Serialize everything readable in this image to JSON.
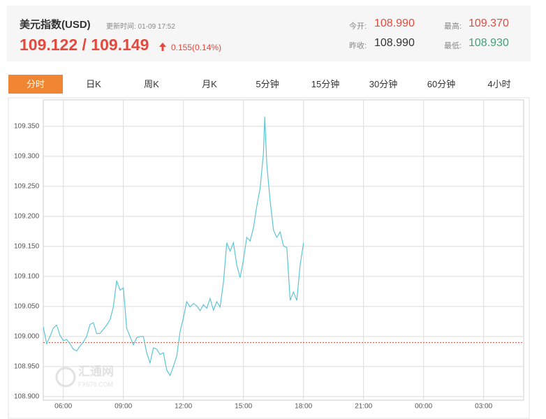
{
  "header": {
    "title": "美元指数(USD)",
    "update_time": "更新时间: 01-09 17:52",
    "price": "109.122 / 109.149",
    "change": "0.155(0.14%)",
    "stats": [
      {
        "label": "今开:",
        "value": "108.990"
      },
      {
        "label": "最高:",
        "value": "109.370"
      },
      {
        "label": "昨收:",
        "value": "108.990"
      },
      {
        "label": "最低:",
        "value": "108.930"
      }
    ]
  },
  "tabs": {
    "items": [
      "分时",
      "日K",
      "周K",
      "月K",
      "5分钟",
      "15分钟",
      "30分钟",
      "60分钟",
      "4小时"
    ],
    "active": 0
  },
  "watermark": {
    "name": "汇通网",
    "site": "FX678.COM"
  },
  "chart_data": {
    "type": "line",
    "grid": true,
    "reference_line": 108.99,
    "xlim": [
      300,
      1740
    ],
    "xticks": [
      {
        "value": 360,
        "label": "06:00"
      },
      {
        "value": 540,
        "label": "09:00"
      },
      {
        "value": 720,
        "label": "12:00"
      },
      {
        "value": 900,
        "label": "15:00"
      },
      {
        "value": 1080,
        "label": "18:00"
      },
      {
        "value": 1260,
        "label": "21:00"
      },
      {
        "value": 1440,
        "label": "00:00"
      },
      {
        "value": 1620,
        "label": "03:00"
      }
    ],
    "ylim": [
      108.894,
      109.394
    ],
    "yticks": [
      {
        "value": 108.9,
        "label": "108.900"
      },
      {
        "value": 108.95,
        "label": "108.950"
      },
      {
        "value": 109.0,
        "label": "109.000"
      },
      {
        "value": 109.05,
        "label": "109.050"
      },
      {
        "value": 109.1,
        "label": "109.100"
      },
      {
        "value": 109.15,
        "label": "109.150"
      },
      {
        "value": 109.2,
        "label": "109.200"
      },
      {
        "value": 109.25,
        "label": "109.250"
      },
      {
        "value": 109.3,
        "label": "109.300"
      },
      {
        "value": 109.35,
        "label": "109.350"
      }
    ],
    "series": [
      {
        "color": "#5cc6d4",
        "x": [
          300,
          310,
          320,
          330,
          340,
          350,
          360,
          370,
          380,
          390,
          400,
          410,
          420,
          430,
          440,
          450,
          460,
          470,
          480,
          490,
          500,
          510,
          520,
          530,
          540,
          550,
          560,
          570,
          580,
          590,
          600,
          610,
          620,
          630,
          640,
          650,
          660,
          670,
          680,
          690,
          700,
          710,
          720,
          730,
          740,
          750,
          760,
          770,
          780,
          790,
          800,
          810,
          820,
          830,
          840,
          850,
          860,
          870,
          880,
          890,
          900,
          910,
          920,
          930,
          940,
          950,
          960,
          964,
          970,
          980,
          990,
          1000,
          1010,
          1020,
          1030,
          1040,
          1050,
          1060,
          1070,
          1080
        ],
        "values": [
          109.016,
          108.988,
          109.0,
          109.014,
          109.019,
          109.002,
          108.993,
          108.995,
          108.988,
          108.979,
          108.976,
          108.984,
          108.991,
          109.0,
          109.02,
          109.023,
          109.005,
          109.005,
          109.012,
          109.019,
          109.028,
          109.049,
          109.093,
          109.077,
          109.081,
          109.014,
          109.0,
          108.986,
          108.998,
          109.0,
          109.0,
          108.973,
          108.956,
          108.981,
          108.979,
          108.97,
          108.973,
          108.944,
          108.935,
          108.95,
          108.967,
          109.008,
          109.031,
          109.058,
          109.049,
          109.055,
          109.051,
          109.043,
          109.053,
          109.047,
          109.063,
          109.044,
          109.058,
          109.049,
          109.09,
          109.156,
          109.142,
          109.156,
          109.119,
          109.098,
          109.128,
          109.165,
          109.159,
          109.181,
          109.217,
          109.247,
          109.305,
          109.366,
          109.287,
          109.226,
          109.177,
          109.165,
          109.174,
          109.151,
          109.148,
          109.06,
          109.074,
          109.06,
          109.119,
          109.156
        ]
      }
    ]
  }
}
